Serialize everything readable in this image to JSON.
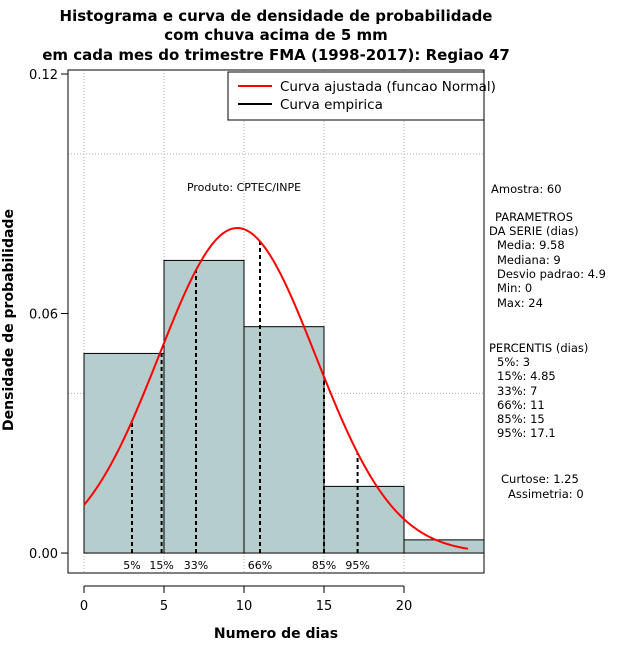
{
  "chart_data": {
    "type": "bar",
    "title_lines": [
      "Histograma e curva de densidade de probabilidade",
      "com chuva acima de 5 mm",
      "em cada mes do trimestre FMA (1998-2017): Regiao 47"
    ],
    "xlabel": "Numero de dias",
    "ylabel": "Densidade de probabilidade",
    "xlim": [
      -1,
      25
    ],
    "ylim": [
      -0.005,
      0.121
    ],
    "x_ticks": [
      0,
      5,
      10,
      15,
      20
    ],
    "y_ticks": [
      0.0,
      0.06,
      0.12
    ],
    "y_tick_labels": [
      "0.00",
      "0.06",
      "0.12"
    ],
    "bins": [
      {
        "from": 0,
        "to": 5,
        "density": 0.05
      },
      {
        "from": 5,
        "to": 10,
        "density": 0.0733
      },
      {
        "from": 10,
        "to": 15,
        "density": 0.0567
      },
      {
        "from": 15,
        "to": 20,
        "density": 0.0167
      },
      {
        "from": 20,
        "to": 25,
        "density": 0.0033
      }
    ],
    "grid_x": [
      0,
      5,
      10,
      15,
      20
    ],
    "grid_y": [
      0.04,
      0.1
    ],
    "normal_fit": {
      "mean": 9.58,
      "sd": 4.9,
      "x_min": 0,
      "x_max": 24
    },
    "percentile_lines": [
      {
        "label": "5%",
        "x": 3
      },
      {
        "label": "15%",
        "x": 4.85
      },
      {
        "label": "33%",
        "x": 7
      },
      {
        "label": "66%",
        "x": 11
      },
      {
        "label": "85%",
        "x": 15
      },
      {
        "label": "95%",
        "x": 17.1
      }
    ],
    "legend": [
      {
        "label": "Curva ajustada (funcao Normal)",
        "color": "#ff0000"
      },
      {
        "label": "Curva empirica",
        "color": "#000000"
      }
    ],
    "legend_position": "top-right",
    "bar_color": "#b5cecd",
    "curve_color": "#ff0000",
    "product_label": "Produto: CPTEC/INPE"
  },
  "stats": {
    "sample": "Amostra: 60",
    "params_heading": [
      "PARAMETROS",
      "DA SERIE (dias)"
    ],
    "params": [
      "Media: 9.58",
      "Mediana: 9",
      "Desvio padrao: 4.9",
      "Min: 0",
      "Max: 24"
    ],
    "percentis_heading": "PERCENTIS (dias)",
    "percentis": [
      "5%: 3",
      "15%: 4.85",
      "33%: 7",
      "66%: 11",
      "85%: 15",
      "95%: 17.1"
    ],
    "curtose": "Curtose: 1.25",
    "assimetria": "Assimetria: 0"
  }
}
